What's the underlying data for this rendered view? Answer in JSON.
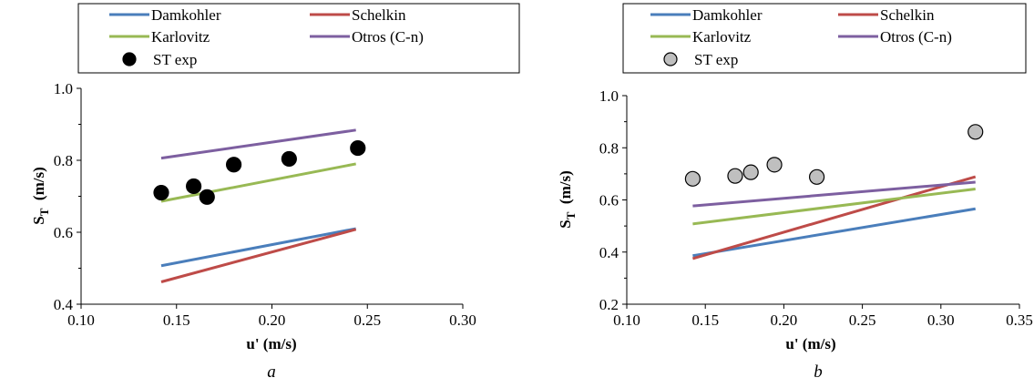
{
  "chart_data": [
    {
      "type": "line",
      "caption": "a",
      "xlabel": "u' (m/s)",
      "ylabel_main": "S",
      "ylabel_sub": "T",
      "ylabel_unit": "(m/s)",
      "xlim": [
        0.1,
        0.3
      ],
      "ylim": [
        0.4,
        1.0
      ],
      "xticks": [
        "0.10",
        "0.15",
        "0.20",
        "0.25",
        "0.30"
      ],
      "yticks": [
        "0.4",
        "0.6",
        "0.8",
        "1.0"
      ],
      "legend_position": "top",
      "series": [
        {
          "name": "Damkohler",
          "color": "#4a7ebb",
          "x": [
            0.142,
            0.244
          ],
          "y": [
            0.507,
            0.61
          ]
        },
        {
          "name": "Schelkin",
          "color": "#be4b48",
          "x": [
            0.142,
            0.244
          ],
          "y": [
            0.462,
            0.608
          ]
        },
        {
          "name": "Karlovitz",
          "color": "#98b954",
          "x": [
            0.142,
            0.244
          ],
          "y": [
            0.686,
            0.79
          ]
        },
        {
          "name": "Otros (C-n)",
          "color": "#7d5fa0",
          "x": [
            0.142,
            0.244
          ],
          "y": [
            0.806,
            0.884
          ]
        }
      ],
      "scatter": {
        "name": "ST exp",
        "fill": "#000000",
        "x": [
          0.142,
          0.159,
          0.166,
          0.18,
          0.209,
          0.245
        ],
        "y": [
          0.71,
          0.728,
          0.698,
          0.788,
          0.804,
          0.834
        ]
      }
    },
    {
      "type": "line",
      "caption": "b",
      "xlabel": "u' (m/s)",
      "ylabel_main": "S",
      "ylabel_sub": "T",
      "ylabel_unit": "(m/s)",
      "xlim": [
        0.1,
        0.35
      ],
      "ylim": [
        0.2,
        1.0
      ],
      "xticks": [
        "0.10",
        "0.15",
        "0.20",
        "0.25",
        "0.30",
        "0.35"
      ],
      "yticks": [
        "0.2",
        "0.4",
        "0.6",
        "0.8",
        "1.0"
      ],
      "legend_position": "top",
      "series": [
        {
          "name": "Damkohler",
          "color": "#4a7ebb",
          "x": [
            0.142,
            0.322
          ],
          "y": [
            0.386,
            0.566
          ]
        },
        {
          "name": "Schelkin",
          "color": "#be4b48",
          "x": [
            0.142,
            0.322
          ],
          "y": [
            0.375,
            0.689
          ]
        },
        {
          "name": "Karlovitz",
          "color": "#98b954",
          "x": [
            0.142,
            0.322
          ],
          "y": [
            0.508,
            0.642
          ]
        },
        {
          "name": "Otros (C-n)",
          "color": "#7d5fa0",
          "x": [
            0.142,
            0.322
          ],
          "y": [
            0.577,
            0.668
          ]
        }
      ],
      "scatter": {
        "name": "ST exp",
        "fill": "#bfbfbf",
        "x": [
          0.142,
          0.169,
          0.179,
          0.194,
          0.221,
          0.322
        ],
        "y": [
          0.681,
          0.692,
          0.706,
          0.735,
          0.688,
          0.861
        ]
      }
    }
  ]
}
